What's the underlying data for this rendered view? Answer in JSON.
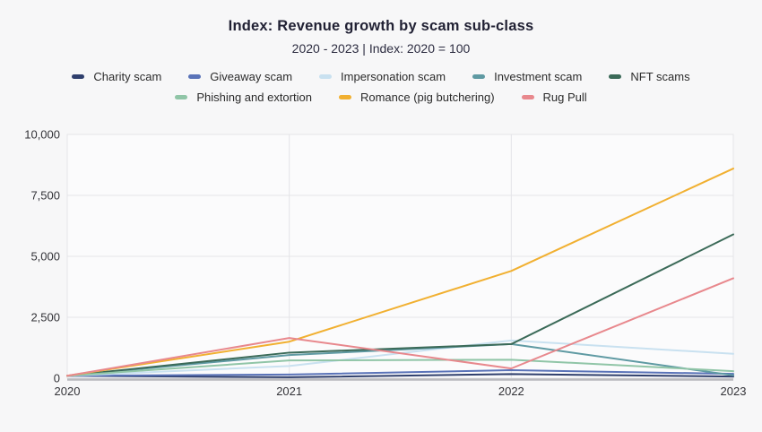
{
  "header": {
    "title": "Index: Revenue growth by scam sub-class",
    "subtitle": "2020 - 2023 | Index: 2020 = 100"
  },
  "chart_data": {
    "type": "line",
    "title": "Index: Revenue growth by scam sub-class",
    "subtitle": "2020 - 2023 | Index: 2020 = 100",
    "x": [
      2020,
      2021,
      2022,
      2023
    ],
    "x_tick_labels": [
      "2020",
      "2021",
      "2022",
      "2023"
    ],
    "y_ticks": [
      0,
      2500,
      5000,
      7500,
      10000
    ],
    "y_tick_labels": [
      "0",
      "2,500",
      "5,000",
      "7,500",
      "10,000"
    ],
    "ylim": [
      0,
      10000
    ],
    "grid": true,
    "legend_position": "top",
    "series": [
      {
        "name": "Charity scam",
        "color": "#2f3f6d",
        "values": [
          100,
          40,
          170,
          70
        ]
      },
      {
        "name": "Giveaway scam",
        "color": "#5a73b8",
        "values": [
          100,
          150,
          330,
          180
        ]
      },
      {
        "name": "Impersonation scam",
        "color": "#c9e1f0",
        "values": [
          100,
          500,
          1550,
          1000
        ]
      },
      {
        "name": "Investment scam",
        "color": "#5f9aa3",
        "values": [
          100,
          950,
          1400,
          120
        ]
      },
      {
        "name": "NFT scams",
        "color": "#3b6a58",
        "values": [
          100,
          1050,
          1400,
          5900
        ]
      },
      {
        "name": "Phishing and extortion",
        "color": "#90c5a7",
        "values": [
          100,
          730,
          760,
          290
        ]
      },
      {
        "name": "Romance (pig butchering)",
        "color": "#f1b031",
        "values": [
          100,
          1500,
          4400,
          8600
        ]
      },
      {
        "name": "Rug Pull",
        "color": "#e8888d",
        "values": [
          100,
          1650,
          400,
          4100
        ]
      }
    ],
    "colors": {
      "grid": "#e4e4e8",
      "plot_background": "#fbfbfc",
      "axis_line": "#b9b9bd",
      "page_background": "#f7f7f8"
    }
  }
}
